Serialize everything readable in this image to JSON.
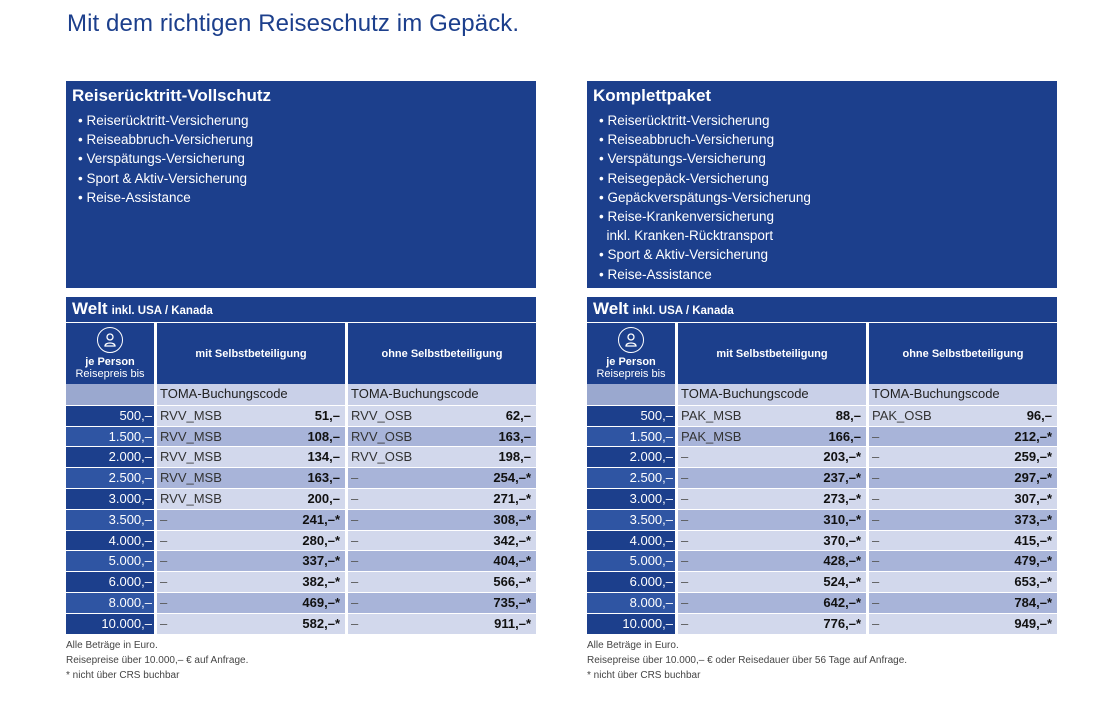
{
  "title": "Mit dem richtigen Reiseschutz im Gepäck.",
  "left": {
    "heading": "Reiserücktritt-Vollschutz",
    "items": [
      "Reiserücktritt-Versicherung",
      "Reiseabbruch-Versicherung",
      "Verspätungs-Versicherung",
      "Sport & Aktiv-Versicherung",
      "Reise-Assistance"
    ],
    "region": "Welt",
    "region_sub": "inkl. USA / Kanada",
    "per_person": "je Person",
    "price_up_to": "Reisepreis bis",
    "col1": "mit Selbstbeteiligung",
    "col2": "ohne Selbstbeteiligung",
    "toma_label": "TOMA-Buchungscode",
    "rows": [
      {
        "price": "500,–",
        "c1": "RVV_MSB",
        "v1": "51,–",
        "c2": "RVV_OSB",
        "v2": "62,–"
      },
      {
        "price": "1.500,–",
        "c1": "RVV_MSB",
        "v1": "108,–",
        "c2": "RVV_OSB",
        "v2": "163,–"
      },
      {
        "price": "2.000,–",
        "c1": "RVV_MSB",
        "v1": "134,–",
        "c2": "RVV_OSB",
        "v2": "198,–"
      },
      {
        "price": "2.500,–",
        "c1": "RVV_MSB",
        "v1": "163,–",
        "c2": "–",
        "v2": "254,–*"
      },
      {
        "price": "3.000,–",
        "c1": "RVV_MSB",
        "v1": "200,–",
        "c2": "–",
        "v2": "271,–*"
      },
      {
        "price": "3.500,–",
        "c1": "–",
        "v1": "241,–*",
        "c2": "–",
        "v2": "308,–*"
      },
      {
        "price": "4.000,–",
        "c1": "–",
        "v1": "280,–*",
        "c2": "–",
        "v2": "342,–*"
      },
      {
        "price": "5.000,–",
        "c1": "–",
        "v1": "337,–*",
        "c2": "–",
        "v2": "404,–*"
      },
      {
        "price": "6.000,–",
        "c1": "–",
        "v1": "382,–*",
        "c2": "–",
        "v2": "566,–*"
      },
      {
        "price": "8.000,–",
        "c1": "–",
        "v1": "469,–*",
        "c2": "–",
        "v2": "735,–*"
      },
      {
        "price": "10.000,–",
        "c1": "–",
        "v1": "582,–*",
        "c2": "–",
        "v2": "911,–*"
      }
    ],
    "foot1": "Alle Beträge in Euro.",
    "foot2": "Reisepreise über 10.000,– € auf Anfrage.",
    "foot3": "* nicht über CRS buchbar"
  },
  "right": {
    "heading": "Komplettpaket",
    "items": [
      "Reiserücktritt-Versicherung",
      "Reiseabbruch-Versicherung",
      "Verspätungs-Versicherung",
      "Reisegepäck-Versicherung",
      "Gepäckverspätungs-Versicherung",
      "Reise-Krankenversicherung",
      "inkl. Kranken-Rücktransport",
      "Sport & Aktiv-Versicherung",
      "Reise-Assistance"
    ],
    "region": "Welt",
    "region_sub": "inkl. USA / Kanada",
    "per_person": "je Person",
    "price_up_to": "Reisepreis bis",
    "col1": "mit Selbstbeteiligung",
    "col2": "ohne Selbstbeteiligung",
    "toma_label": "TOMA-Buchungscode",
    "rows": [
      {
        "price": "500,–",
        "c1": "PAK_MSB",
        "v1": "88,–",
        "c2": "PAK_OSB",
        "v2": "96,–"
      },
      {
        "price": "1.500,–",
        "c1": "PAK_MSB",
        "v1": "166,–",
        "c2": "–",
        "v2": "212,–*"
      },
      {
        "price": "2.000,–",
        "c1": "–",
        "v1": "203,–*",
        "c2": "–",
        "v2": "259,–*"
      },
      {
        "price": "2.500,–",
        "c1": "–",
        "v1": "237,–*",
        "c2": "–",
        "v2": "297,–*"
      },
      {
        "price": "3.000,–",
        "c1": "–",
        "v1": "273,–*",
        "c2": "–",
        "v2": "307,–*"
      },
      {
        "price": "3.500,–",
        "c1": "–",
        "v1": "310,–*",
        "c2": "–",
        "v2": "373,–*"
      },
      {
        "price": "4.000,–",
        "c1": "–",
        "v1": "370,–*",
        "c2": "–",
        "v2": "415,–*"
      },
      {
        "price": "5.000,–",
        "c1": "–",
        "v1": "428,–*",
        "c2": "–",
        "v2": "479,–*"
      },
      {
        "price": "6.000,–",
        "c1": "–",
        "v1": "524,–*",
        "c2": "–",
        "v2": "653,–*"
      },
      {
        "price": "8.000,–",
        "c1": "–",
        "v1": "642,–*",
        "c2": "–",
        "v2": "784,–*"
      },
      {
        "price": "10.000,–",
        "c1": "–",
        "v1": "776,–*",
        "c2": "–",
        "v2": "949,–*"
      }
    ],
    "foot1": "Alle Beträge in Euro.",
    "foot2": "Reisepreise über 10.000,– € oder Reisedauer über 56 Tage auf Anfrage.",
    "foot3": "* nicht über CRS buchbar"
  }
}
